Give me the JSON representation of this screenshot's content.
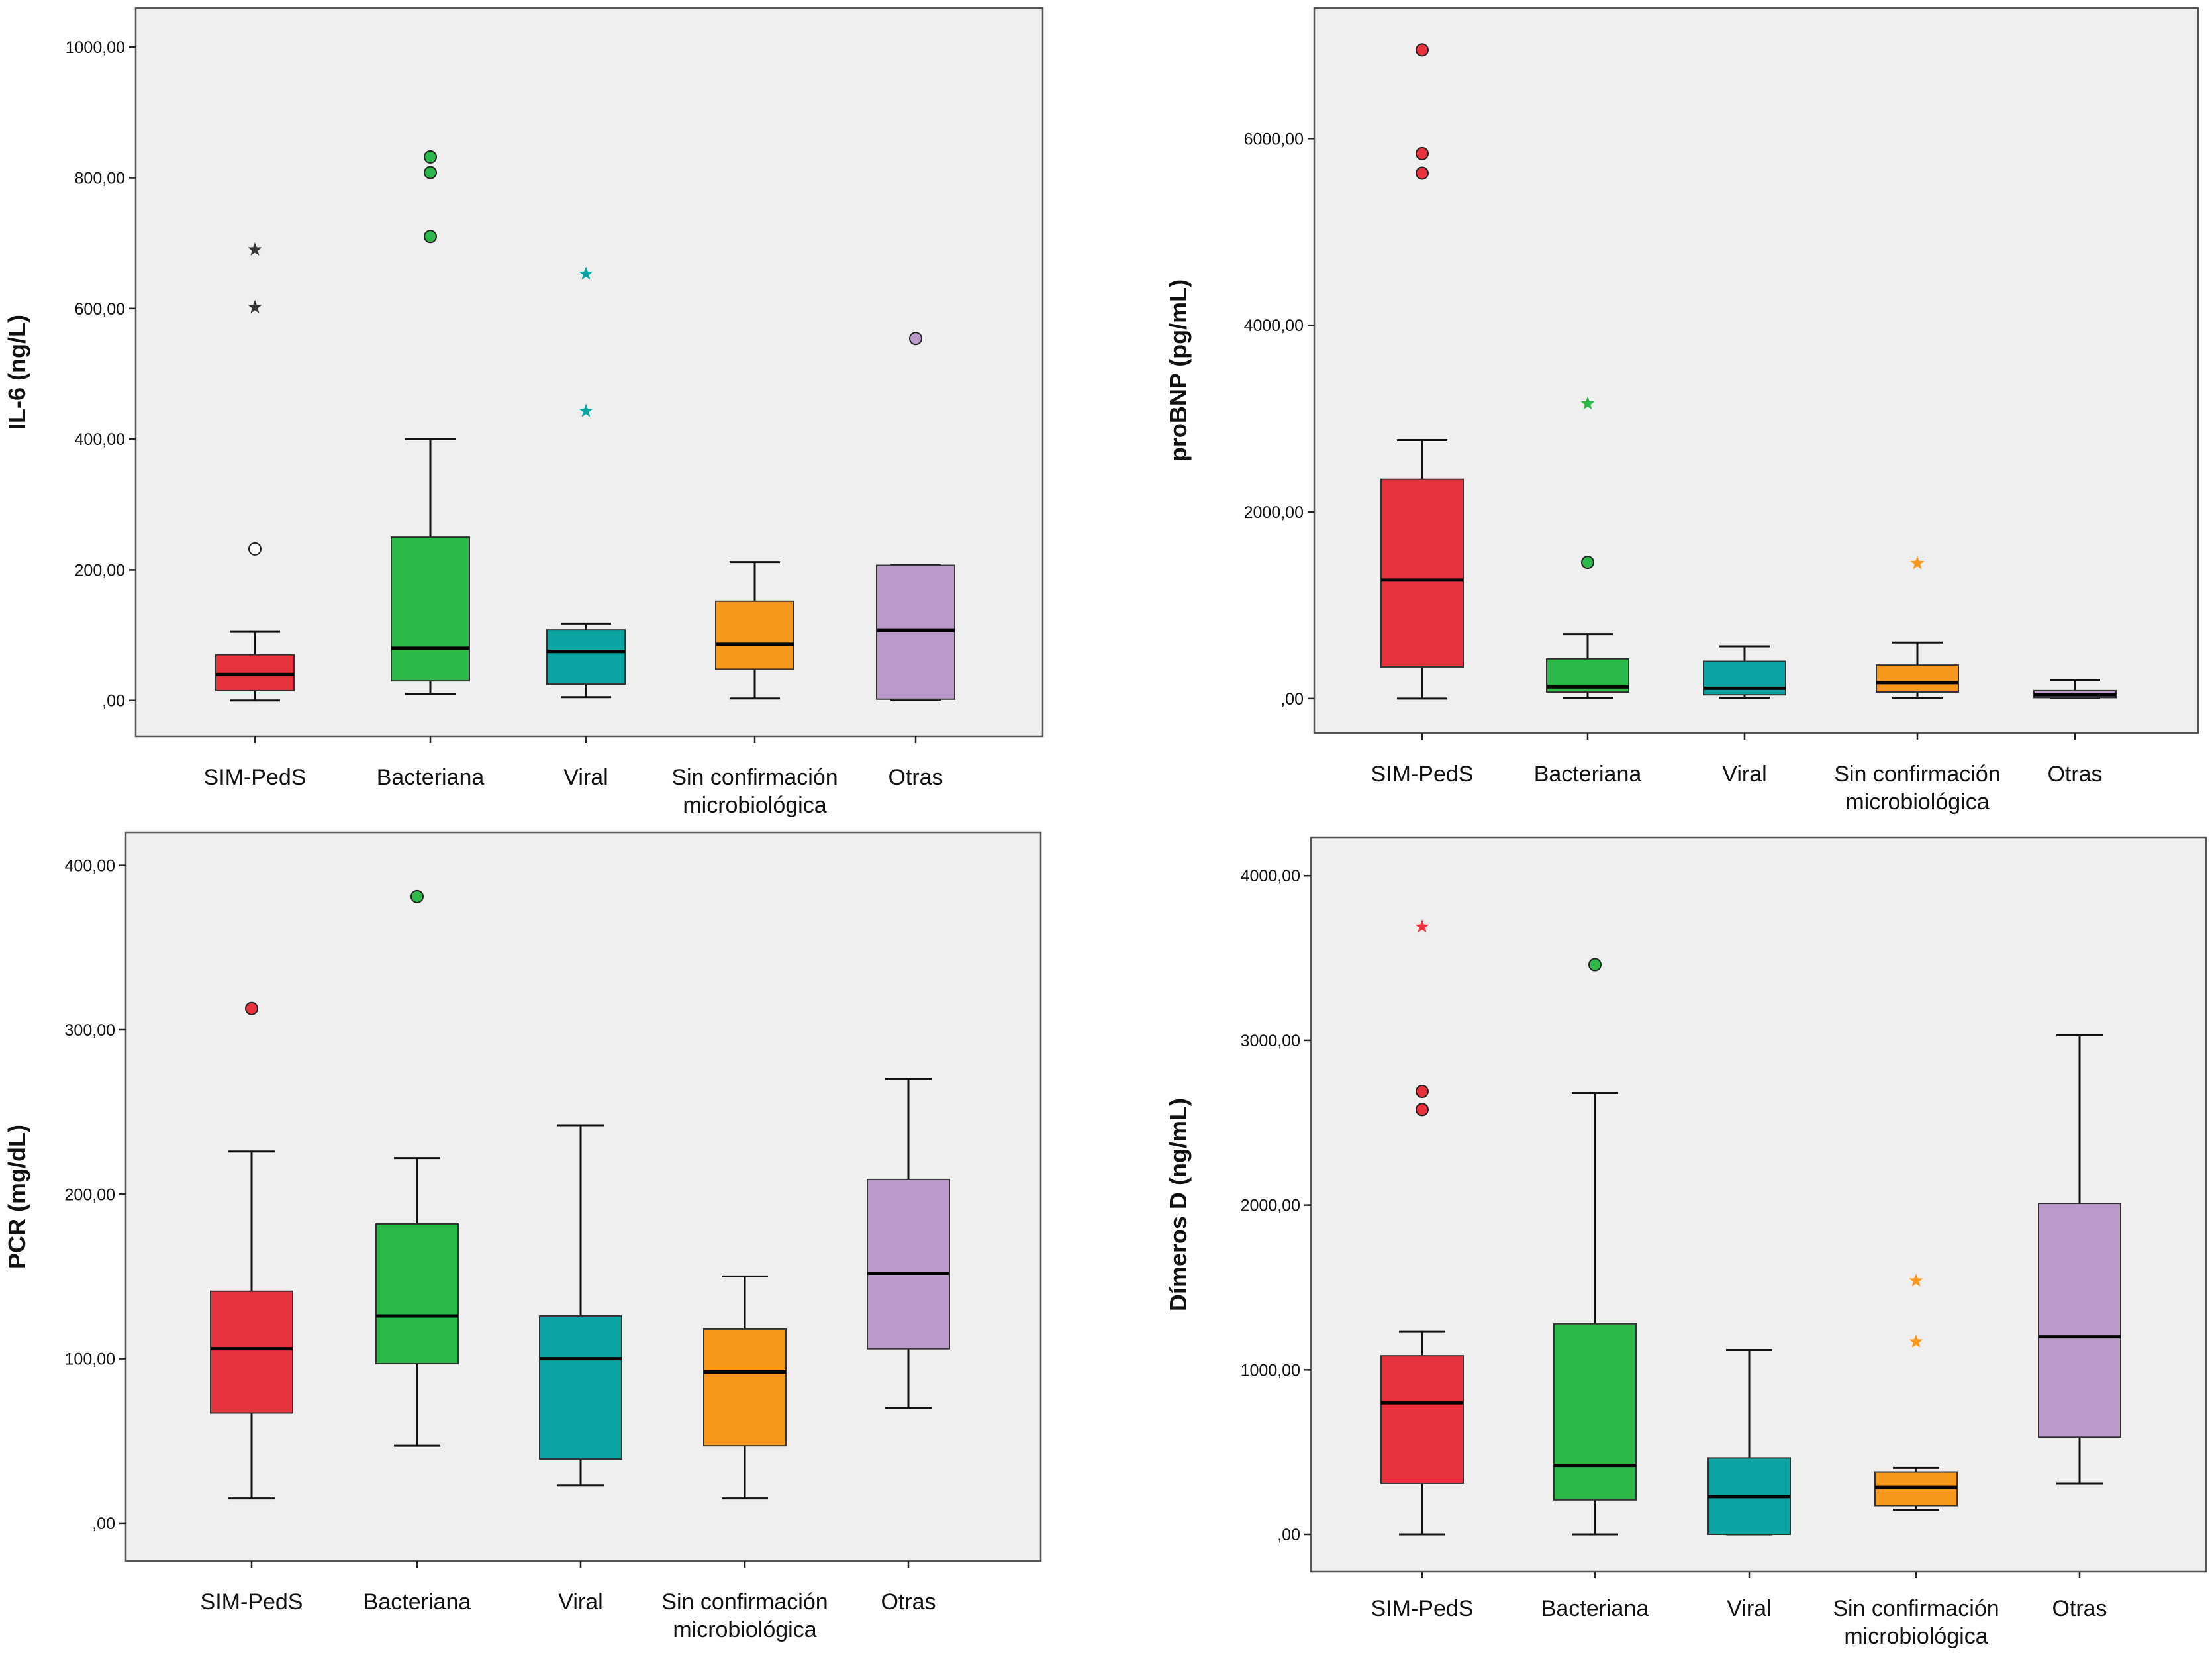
{
  "colors": {
    "panel_bg": "#EFEFEF",
    "frame": "#555555",
    "SIM-PedS": "#E8333F",
    "Bacteriana": "#2DB84A",
    "Viral": "#0AA5A3",
    "Sin confirmación microbiológica": "#F7981D",
    "Otras": "#B99ACB",
    "outlier_open": "#FFFFFF",
    "extreme_dark": "#333333"
  },
  "chart_data": [
    {
      "type": "boxplot",
      "ylabel": "IL-6 (ng/L)",
      "ylim": [
        -55,
        1060
      ],
      "yticks": [
        0,
        200,
        400,
        600,
        800,
        1000
      ],
      "ytick_labels": [
        ",00",
        "200,00",
        "400,00",
        "600,00",
        "800,00",
        "1000,00"
      ],
      "categories": [
        {
          "lines": [
            "SIM-PedS"
          ],
          "min": 0,
          "q1": 15,
          "median": 40,
          "q3": 70,
          "max": 105,
          "outliers": [
            {
              "value": 232,
              "marker": "circle-open"
            }
          ],
          "extremes": [
            {
              "value": 602,
              "color": "dark"
            },
            {
              "value": 690,
              "color": "dark"
            }
          ]
        },
        {
          "lines": [
            "Bacteriana"
          ],
          "min": 10,
          "q1": 30,
          "median": 80,
          "q3": 250,
          "max": 400,
          "outliers": [
            {
              "value": 710,
              "marker": "circle"
            },
            {
              "value": 808,
              "marker": "circle"
            },
            {
              "value": 832,
              "marker": "circle"
            }
          ],
          "extremes": []
        },
        {
          "lines": [
            "Viral"
          ],
          "min": 5,
          "q1": 25,
          "median": 75,
          "q3": 108,
          "max": 118,
          "outliers": [],
          "extremes": [
            {
              "value": 443
            },
            {
              "value": 653
            }
          ]
        },
        {
          "lines": [
            "Sin confirmación",
            "microbiológica"
          ],
          "min": 3,
          "q1": 48,
          "median": 86,
          "q3": 152,
          "max": 212,
          "outliers": [],
          "extremes": []
        },
        {
          "lines": [
            "Otras"
          ],
          "min": 1,
          "q1": 2,
          "median": 107,
          "q3": 207,
          "max": 207,
          "outliers": [
            {
              "value": 554,
              "marker": "circle"
            }
          ],
          "extremes": []
        }
      ]
    },
    {
      "type": "boxplot",
      "ylabel": "proBNP (pg/mL)",
      "ylim": [
        -370,
        7400
      ],
      "yticks": [
        0,
        2000,
        4000,
        6000
      ],
      "ytick_labels": [
        ",00",
        "2000,00",
        "4000,00",
        "6000,00"
      ],
      "categories": [
        {
          "lines": [
            "SIM-PedS"
          ],
          "min": 0,
          "q1": 340,
          "median": 1270,
          "q3": 2350,
          "max": 2770,
          "outliers": [
            {
              "value": 5630,
              "marker": "circle"
            },
            {
              "value": 5840,
              "marker": "circle"
            },
            {
              "value": 6950,
              "marker": "circle"
            }
          ],
          "extremes": []
        },
        {
          "lines": [
            "Bacteriana"
          ],
          "min": 10,
          "q1": 70,
          "median": 125,
          "q3": 425,
          "max": 690,
          "outliers": [
            {
              "value": 1460,
              "marker": "circle"
            }
          ],
          "extremes": [
            {
              "value": 3160
            }
          ]
        },
        {
          "lines": [
            "Viral"
          ],
          "min": 10,
          "q1": 40,
          "median": 110,
          "q3": 400,
          "max": 560,
          "outliers": [],
          "extremes": []
        },
        {
          "lines": [
            "Sin confirmación",
            "microbiológica"
          ],
          "min": 10,
          "q1": 70,
          "median": 170,
          "q3": 360,
          "max": 600,
          "outliers": [],
          "extremes": [
            {
              "value": 1450
            }
          ]
        },
        {
          "lines": [
            "Otras"
          ],
          "min": 5,
          "q1": 10,
          "median": 40,
          "q3": 85,
          "max": 200,
          "outliers": [],
          "extremes": []
        }
      ]
    },
    {
      "type": "boxplot",
      "ylabel": "PCR (mg/dL)",
      "ylim": [
        -23,
        420
      ],
      "yticks": [
        0,
        100,
        200,
        300,
        400
      ],
      "ytick_labels": [
        ",00",
        "100,00",
        "200,00",
        "300,00",
        "400,00"
      ],
      "categories": [
        {
          "lines": [
            "SIM-PedS"
          ],
          "min": 15,
          "q1": 67,
          "median": 106,
          "q3": 141,
          "max": 226,
          "outliers": [
            {
              "value": 313,
              "marker": "circle"
            }
          ],
          "extremes": []
        },
        {
          "lines": [
            "Bacteriana"
          ],
          "min": 47,
          "q1": 97,
          "median": 126,
          "q3": 182,
          "max": 222,
          "outliers": [
            {
              "value": 381,
              "marker": "circle"
            }
          ],
          "extremes": []
        },
        {
          "lines": [
            "Viral"
          ],
          "min": 23,
          "q1": 39,
          "median": 100,
          "q3": 126,
          "max": 242,
          "outliers": [],
          "extremes": []
        },
        {
          "lines": [
            "Sin confirmación",
            "microbiológica"
          ],
          "min": 15,
          "q1": 47,
          "median": 92,
          "q3": 118,
          "max": 150,
          "outliers": [],
          "extremes": []
        },
        {
          "lines": [
            "Otras"
          ],
          "min": 70,
          "q1": 106,
          "median": 152,
          "q3": 209,
          "max": 270,
          "outliers": [],
          "extremes": []
        }
      ]
    },
    {
      "type": "boxplot",
      "ylabel": "Dímeros D (ng/mL)",
      "ylim": [
        -225,
        4230
      ],
      "yticks": [
        0,
        1000,
        2000,
        3000,
        4000
      ],
      "ytick_labels": [
        ",00",
        "1000,00",
        "2000,00",
        "3000,00",
        "4000,00"
      ],
      "categories": [
        {
          "lines": [
            "SIM-PedS"
          ],
          "min": 0,
          "q1": 310,
          "median": 800,
          "q3": 1085,
          "max": 1230,
          "outliers": [
            {
              "value": 2580,
              "marker": "circle"
            },
            {
              "value": 2690,
              "marker": "circle"
            }
          ],
          "extremes": [
            {
              "value": 3690
            }
          ]
        },
        {
          "lines": [
            "Bacteriana"
          ],
          "min": 0,
          "q1": 210,
          "median": 420,
          "q3": 1280,
          "max": 2680,
          "outliers": [
            {
              "value": 3460,
              "marker": "circle"
            }
          ],
          "extremes": []
        },
        {
          "lines": [
            "Viral"
          ],
          "min": 0,
          "q1": 0,
          "median": 230,
          "q3": 465,
          "max": 1120,
          "outliers": [],
          "extremes": []
        },
        {
          "lines": [
            "Sin confirmación",
            "microbiológica"
          ],
          "min": 150,
          "q1": 175,
          "median": 285,
          "q3": 380,
          "max": 405,
          "outliers": [],
          "extremes": [
            {
              "value": 1170
            },
            {
              "value": 1540
            }
          ]
        },
        {
          "lines": [
            "Otras"
          ],
          "min": 310,
          "q1": 590,
          "median": 1200,
          "q3": 2010,
          "max": 3030,
          "outliers": [],
          "extremes": []
        }
      ]
    }
  ]
}
